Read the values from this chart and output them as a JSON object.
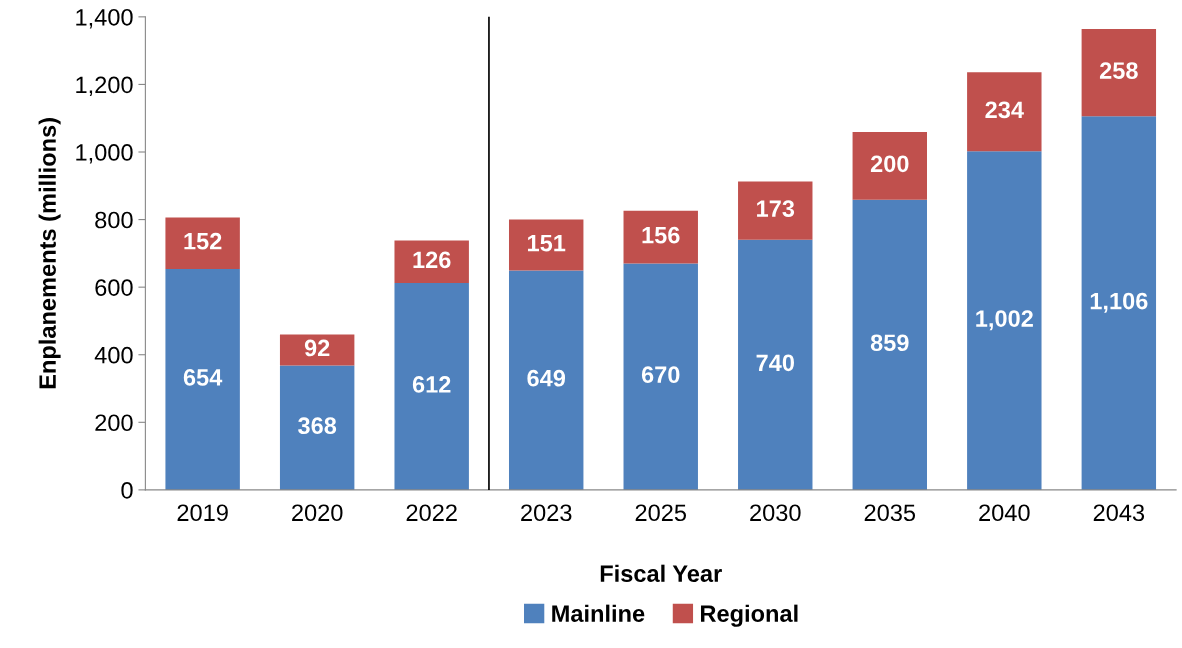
{
  "chart_data": {
    "type": "bar",
    "stacked": true,
    "xlabel": "Fiscal Year",
    "ylabel": "Enplanements (millions)",
    "categories": [
      "2019",
      "2020",
      "2022",
      "2023",
      "2025",
      "2030",
      "2035",
      "2040",
      "2043"
    ],
    "series": [
      {
        "name": "Mainline",
        "color": "#4f81bd",
        "values": [
          654,
          368,
          612,
          649,
          670,
          740,
          859,
          1002,
          1106
        ],
        "value_labels": [
          "654",
          "368",
          "612",
          "649",
          "670",
          "740",
          "859",
          "1,002",
          "1,106"
        ]
      },
      {
        "name": "Regional",
        "color": "#c0504d",
        "values": [
          152,
          92,
          126,
          151,
          156,
          173,
          200,
          234,
          258
        ],
        "value_labels": [
          "152",
          "92",
          "126",
          "151",
          "156",
          "173",
          "200",
          "234",
          "258"
        ]
      }
    ],
    "ylim": [
      0,
      1400
    ],
    "yticks": [
      0,
      200,
      400,
      600,
      800,
      {
        "value": 1000,
        "label": "1,000"
      },
      {
        "value": 1200,
        "label": "1,200"
      },
      {
        "value": 1400,
        "label": "1,400"
      }
    ],
    "grid": false,
    "legend": "bottom"
  }
}
